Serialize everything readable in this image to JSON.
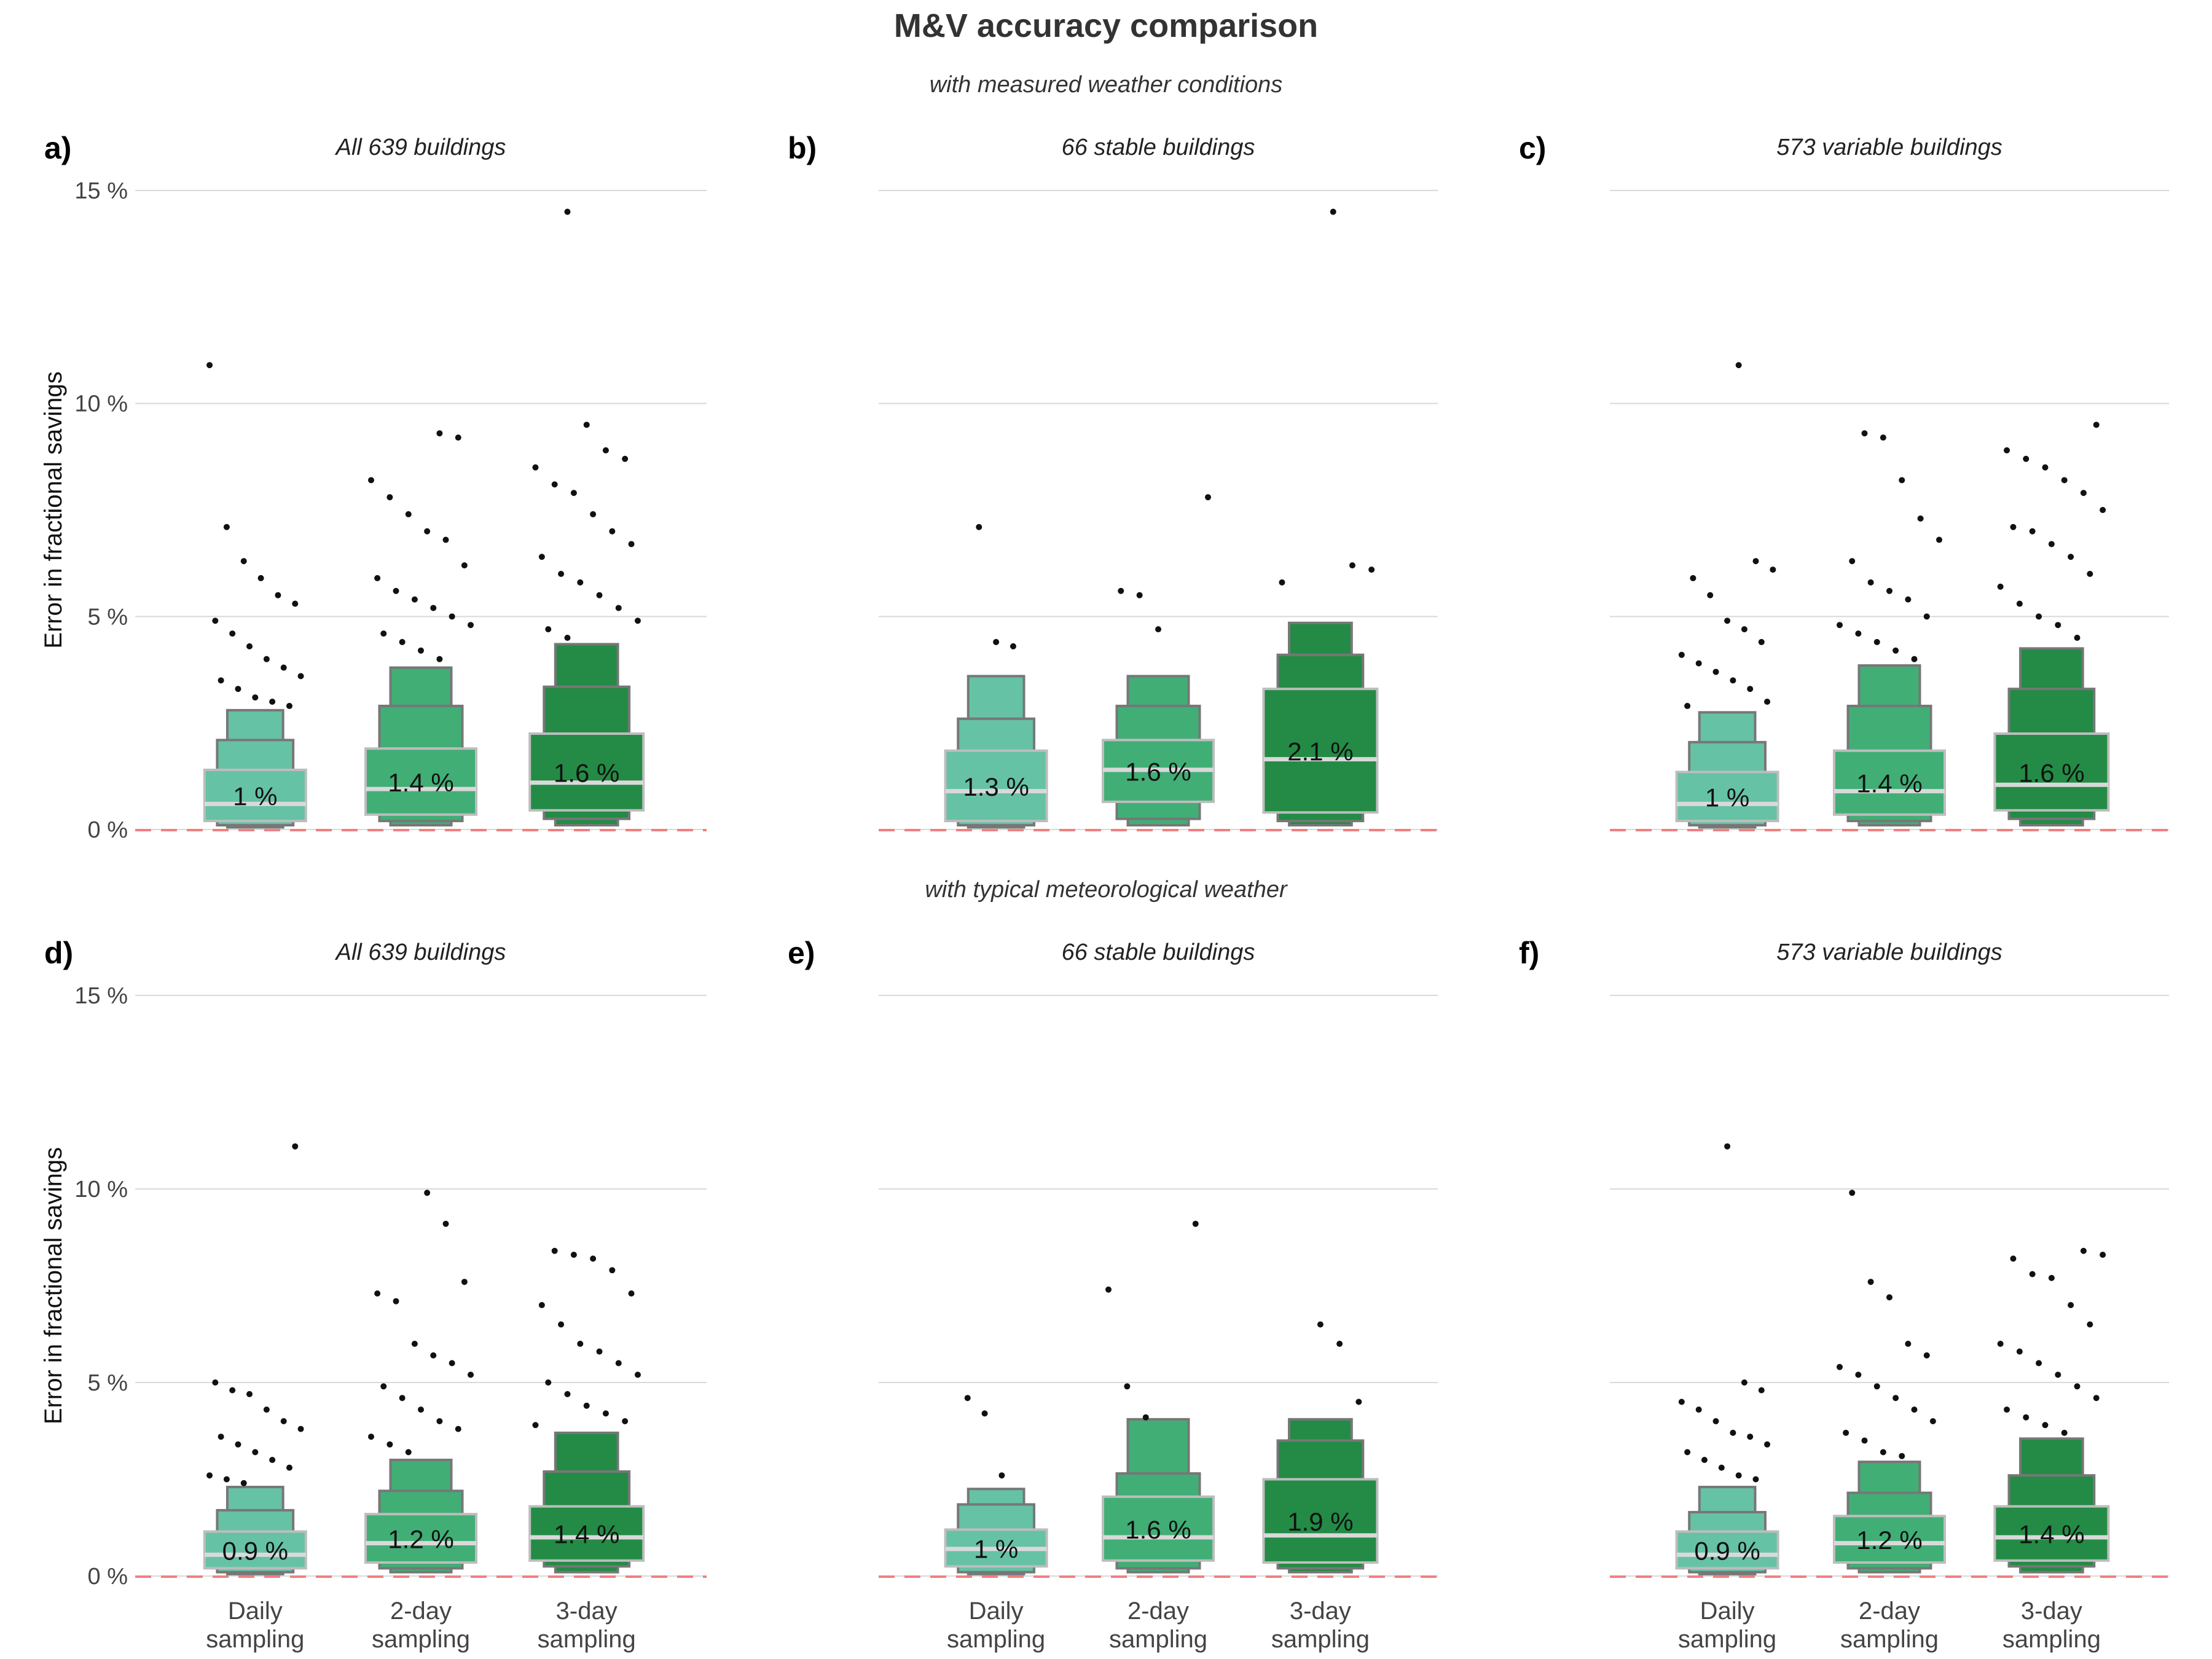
{
  "title": "M&V accuracy comparison",
  "row_subtitles": [
    "with measured weather conditions",
    "with typical meteorological weather"
  ],
  "ylabel": "Error in fractional savings",
  "y_ticks": [
    "0 %",
    "5 %",
    "10 %",
    "15 %"
  ],
  "categories": [
    "Daily\nsampling",
    "2-day\nsampling",
    "3-day\nsampling"
  ],
  "colors": {
    "daily": "#66c2a5",
    "two_day": "#41ae76",
    "three_day": "#238b45",
    "box_outline": "#777777",
    "median": "#d9d9d9",
    "zero_line": "#f08080",
    "grid": "#d9d9d9",
    "points": "#111111"
  },
  "chart_data": [
    {
      "type": "letter-value boxplot",
      "panel": "a)",
      "title": "All 639 buildings",
      "ylim": [
        0,
        15
      ],
      "series": [
        {
          "category": "Daily sampling",
          "median": 0.6,
          "label": "1 %",
          "levels": [
            [
              0.2,
              1.4
            ],
            [
              0.1,
              2.1
            ],
            [
              0.05,
              2.8
            ]
          ],
          "outliers": [
            10.9,
            7.1,
            6.3,
            5.9,
            5.5,
            5.3,
            4.9,
            4.6,
            4.3,
            4.0,
            3.8,
            3.6,
            3.5,
            3.3,
            3.1,
            3.0,
            2.9
          ]
        },
        {
          "category": "2-day sampling",
          "median": 0.95,
          "label": "1.4 %",
          "levels": [
            [
              0.35,
              1.9
            ],
            [
              0.2,
              2.9
            ],
            [
              0.1,
              3.8
            ]
          ],
          "outliers": [
            9.3,
            9.2,
            8.2,
            7.8,
            7.4,
            7.0,
            6.8,
            6.2,
            5.9,
            5.6,
            5.4,
            5.2,
            5.0,
            4.8,
            4.6,
            4.4,
            4.2,
            4.0
          ]
        },
        {
          "category": "3-day sampling",
          "median": 1.1,
          "label": "1.6 %",
          "levels": [
            [
              0.45,
              2.25
            ],
            [
              0.25,
              3.35
            ],
            [
              0.1,
              4.35
            ]
          ],
          "outliers": [
            14.5,
            9.5,
            8.9,
            8.7,
            8.5,
            8.1,
            7.9,
            7.4,
            7.0,
            6.7,
            6.4,
            6.0,
            5.8,
            5.5,
            5.2,
            4.9,
            4.7,
            4.5
          ]
        }
      ]
    },
    {
      "type": "letter-value boxplot",
      "panel": "b)",
      "title": "66 stable buildings",
      "ylim": [
        0,
        15
      ],
      "series": [
        {
          "category": "Daily sampling",
          "median": 0.9,
          "label": "1.3 %",
          "levels": [
            [
              0.2,
              1.85
            ],
            [
              0.1,
              2.6
            ],
            [
              0.05,
              3.6
            ]
          ],
          "outliers": [
            7.1,
            4.4,
            4.3
          ]
        },
        {
          "category": "2-day sampling",
          "median": 1.4,
          "label": "1.6 %",
          "levels": [
            [
              0.65,
              2.1
            ],
            [
              0.25,
              2.9
            ],
            [
              0.1,
              3.6
            ]
          ],
          "outliers": [
            7.8,
            5.6,
            5.5,
            4.7
          ]
        },
        {
          "category": "3-day sampling",
          "median": 1.65,
          "label": "2.1 %",
          "levels": [
            [
              0.4,
              3.3
            ],
            [
              0.2,
              4.1
            ],
            [
              0.1,
              4.85
            ]
          ],
          "outliers": [
            14.5,
            6.2,
            6.1,
            5.8
          ]
        }
      ]
    },
    {
      "type": "letter-value boxplot",
      "panel": "c)",
      "title": "573 variable buildings",
      "ylim": [
        0,
        15
      ],
      "series": [
        {
          "category": "Daily sampling",
          "median": 0.6,
          "label": "1 %",
          "levels": [
            [
              0.2,
              1.35
            ],
            [
              0.1,
              2.05
            ],
            [
              0.05,
              2.75
            ]
          ],
          "outliers": [
            10.9,
            6.3,
            6.1,
            5.9,
            5.5,
            4.9,
            4.7,
            4.4,
            4.1,
            3.9,
            3.7,
            3.5,
            3.3,
            3.0,
            2.9
          ]
        },
        {
          "category": "2-day sampling",
          "median": 0.9,
          "label": "1.4 %",
          "levels": [
            [
              0.35,
              1.85
            ],
            [
              0.2,
              2.9
            ],
            [
              0.1,
              3.85
            ]
          ],
          "outliers": [
            9.3,
            9.2,
            8.2,
            7.3,
            6.8,
            6.3,
            5.8,
            5.6,
            5.4,
            5.0,
            4.8,
            4.6,
            4.4,
            4.2,
            4.0
          ]
        },
        {
          "category": "3-day sampling",
          "median": 1.05,
          "label": "1.6 %",
          "levels": [
            [
              0.45,
              2.25
            ],
            [
              0.25,
              3.3
            ],
            [
              0.1,
              4.25
            ]
          ],
          "outliers": [
            9.5,
            8.9,
            8.7,
            8.5,
            8.2,
            7.9,
            7.5,
            7.1,
            7.0,
            6.7,
            6.4,
            6.0,
            5.7,
            5.3,
            5.0,
            4.8,
            4.5
          ]
        }
      ]
    },
    {
      "type": "letter-value boxplot",
      "panel": "d)",
      "title": "All 639 buildings",
      "ylim": [
        0,
        15
      ],
      "series": [
        {
          "category": "Daily sampling",
          "median": 0.55,
          "label": "0.9 %",
          "levels": [
            [
              0.2,
              1.15
            ],
            [
              0.1,
              1.7
            ],
            [
              0.05,
              2.3
            ]
          ],
          "outliers": [
            11.1,
            5.0,
            4.8,
            4.7,
            4.3,
            4.0,
            3.8,
            3.6,
            3.4,
            3.2,
            3.0,
            2.8,
            2.6,
            2.5,
            2.4
          ]
        },
        {
          "category": "2-day sampling",
          "median": 0.85,
          "label": "1.2 %",
          "levels": [
            [
              0.35,
              1.6
            ],
            [
              0.2,
              2.2
            ],
            [
              0.1,
              3.0
            ]
          ],
          "outliers": [
            9.9,
            9.1,
            7.6,
            7.3,
            7.1,
            6.0,
            5.7,
            5.5,
            5.2,
            4.9,
            4.6,
            4.3,
            4.0,
            3.8,
            3.6,
            3.4,
            3.2
          ]
        },
        {
          "category": "3-day sampling",
          "median": 1.0,
          "label": "1.4 %",
          "levels": [
            [
              0.4,
              1.8
            ],
            [
              0.25,
              2.7
            ],
            [
              0.1,
              3.7
            ]
          ],
          "outliers": [
            8.4,
            8.3,
            8.2,
            7.9,
            7.3,
            7.0,
            6.5,
            6.0,
            5.8,
            5.5,
            5.2,
            5.0,
            4.7,
            4.4,
            4.2,
            4.0,
            3.9
          ]
        }
      ]
    },
    {
      "type": "letter-value boxplot",
      "panel": "e)",
      "title": "66 stable buildings",
      "ylim": [
        0,
        15
      ],
      "series": [
        {
          "category": "Daily sampling",
          "median": 0.7,
          "label": "1 %",
          "levels": [
            [
              0.25,
              1.2
            ],
            [
              0.1,
              1.85
            ],
            [
              0.05,
              2.25
            ]
          ],
          "outliers": [
            4.6,
            4.2,
            2.6
          ]
        },
        {
          "category": "2-day sampling",
          "median": 1.0,
          "label": "1.6 %",
          "levels": [
            [
              0.4,
              2.05
            ],
            [
              0.2,
              2.65
            ],
            [
              0.1,
              4.05
            ]
          ],
          "outliers": [
            9.1,
            7.4,
            4.9,
            4.1
          ]
        },
        {
          "category": "3-day sampling",
          "median": 1.05,
          "label": "1.9 %",
          "levels": [
            [
              0.35,
              2.5
            ],
            [
              0.2,
              3.5
            ],
            [
              0.1,
              4.05
            ]
          ],
          "outliers": [
            6.5,
            6.0,
            4.5
          ]
        }
      ]
    },
    {
      "type": "letter-value boxplot",
      "panel": "f)",
      "title": "573 variable buildings",
      "ylim": [
        0,
        15
      ],
      "series": [
        {
          "category": "Daily sampling",
          "median": 0.55,
          "label": "0.9 %",
          "levels": [
            [
              0.2,
              1.15
            ],
            [
              0.1,
              1.65
            ],
            [
              0.05,
              2.3
            ]
          ],
          "outliers": [
            11.1,
            5.0,
            4.8,
            4.5,
            4.3,
            4.0,
            3.7,
            3.6,
            3.4,
            3.2,
            3.0,
            2.8,
            2.6,
            2.5
          ]
        },
        {
          "category": "2-day sampling",
          "median": 0.85,
          "label": "1.2 %",
          "levels": [
            [
              0.35,
              1.55
            ],
            [
              0.2,
              2.15
            ],
            [
              0.1,
              2.95
            ]
          ],
          "outliers": [
            9.9,
            7.6,
            7.2,
            6.0,
            5.7,
            5.4,
            5.2,
            4.9,
            4.6,
            4.3,
            4.0,
            3.7,
            3.5,
            3.2,
            3.1
          ]
        },
        {
          "category": "3-day sampling",
          "median": 1.0,
          "label": "1.4 %",
          "levels": [
            [
              0.4,
              1.8
            ],
            [
              0.25,
              2.6
            ],
            [
              0.1,
              3.55
            ]
          ],
          "outliers": [
            8.4,
            8.3,
            8.2,
            7.8,
            7.7,
            7.0,
            6.5,
            6.0,
            5.8,
            5.5,
            5.2,
            4.9,
            4.6,
            4.3,
            4.1,
            3.9,
            3.7
          ]
        }
      ]
    }
  ]
}
